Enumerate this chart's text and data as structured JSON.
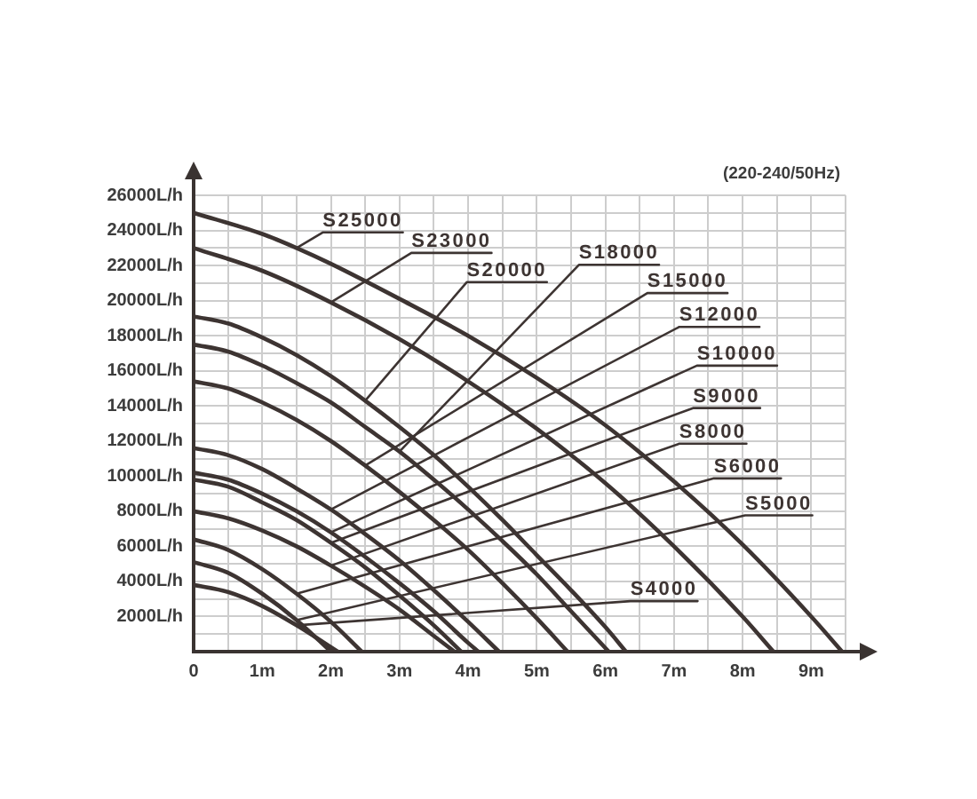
{
  "chart_data": {
    "type": "line",
    "annotations": [
      "(220-240/50Hz)"
    ],
    "xlim": [
      0,
      9.5
    ],
    "xticks": [
      0,
      {
        "value": 0.5,
        "label": null
      },
      {
        "value": 1,
        "label": "1m"
      },
      {
        "value": 1.5,
        "label": null
      },
      {
        "value": 2,
        "label": "2m"
      },
      {
        "value": 2.5,
        "label": null
      },
      {
        "value": 3,
        "label": "3m"
      },
      {
        "value": 3.5,
        "label": null
      },
      {
        "value": 4,
        "label": "4m"
      },
      {
        "value": 4.5,
        "label": null
      },
      {
        "value": 5,
        "label": "5m"
      },
      {
        "value": 5.5,
        "label": null
      },
      {
        "value": 6,
        "label": "6m"
      },
      {
        "value": 6.5,
        "label": null
      },
      {
        "value": 7,
        "label": "7m"
      },
      {
        "value": 7.5,
        "label": null
      },
      {
        "value": 8,
        "label": "8m"
      },
      {
        "value": 8.5,
        "label": null
      },
      {
        "value": 9,
        "label": "9m"
      },
      {
        "value": 9.5,
        "label": null
      }
    ],
    "ylim": [
      0,
      26000
    ],
    "yticks": [
      {
        "value": 0,
        "label": null
      },
      {
        "value": 1000,
        "label": null
      },
      {
        "value": 2000,
        "label": "2000L/h"
      },
      {
        "value": 3000,
        "label": null
      },
      {
        "value": 4000,
        "label": "4000L/h"
      },
      {
        "value": 5000,
        "label": null
      },
      {
        "value": 6000,
        "label": "6000L/h"
      },
      {
        "value": 7000,
        "label": null
      },
      {
        "value": 8000,
        "label": "8000L/h"
      },
      {
        "value": 9000,
        "label": null
      },
      {
        "value": 10000,
        "label": "10000L/h"
      },
      {
        "value": 11000,
        "label": null
      },
      {
        "value": 12000,
        "label": "12000L/h"
      },
      {
        "value": 13000,
        "label": null
      },
      {
        "value": 14000,
        "label": "14000L/h"
      },
      {
        "value": 15000,
        "label": null
      },
      {
        "value": 16000,
        "label": "16000L/h"
      },
      {
        "value": 17000,
        "label": null
      },
      {
        "value": 18000,
        "label": "18000L/h"
      },
      {
        "value": 19000,
        "label": null
      },
      {
        "value": 20000,
        "label": "20000L/h"
      },
      {
        "value": 21000,
        "label": null
      },
      {
        "value": 22000,
        "label": "22000L/h"
      },
      {
        "value": 23000,
        "label": null
      },
      {
        "value": 24000,
        "label": "24000L/h"
      },
      {
        "value": 25000,
        "label": null
      },
      {
        "value": 26000,
        "label": "26000L/h"
      }
    ],
    "grid": true,
    "legend": false,
    "marker": "none",
    "line_style": "solid",
    "series": [
      {
        "name": "S25000",
        "color": "#3d3432",
        "x": [
          0,
          1,
          1.5,
          2,
          3,
          4,
          5,
          6,
          7,
          8,
          9,
          9.45
        ],
        "values": [
          25000,
          23800,
          23000,
          22100,
          20100,
          18000,
          15600,
          12900,
          9700,
          6100,
          2000,
          0
        ]
      },
      {
        "name": "S23000",
        "color": "#3d3432",
        "x": [
          0,
          1,
          2,
          3,
          4,
          5,
          6,
          7,
          8,
          8.45
        ],
        "values": [
          23000,
          21700,
          19900,
          17800,
          15400,
          12700,
          9600,
          6000,
          2000,
          0
        ]
      },
      {
        "name": "S20000",
        "color": "#3d3432",
        "x": [
          0,
          0.5,
          1,
          1.5,
          2,
          2.5,
          3,
          3.5,
          4,
          4.5,
          5,
          5.5,
          6,
          6.3
        ],
        "values": [
          19100,
          18700,
          17900,
          16900,
          15700,
          14300,
          12800,
          11200,
          9400,
          7500,
          5500,
          3500,
          1400,
          0
        ]
      },
      {
        "name": "S18000",
        "color": "#3d3432",
        "x": [
          0,
          0.5,
          1,
          1.5,
          2,
          2.5,
          3,
          3.5,
          4,
          4.5,
          5,
          5.5,
          6.05
        ],
        "values": [
          17500,
          17100,
          16300,
          15300,
          14200,
          12800,
          11400,
          9800,
          8100,
          6300,
          4400,
          2300,
          0
        ]
      },
      {
        "name": "S15000",
        "color": "#3d3432",
        "x": [
          0,
          0.5,
          1,
          1.5,
          2,
          2.5,
          3,
          3.5,
          4,
          4.5,
          5,
          5.45
        ],
        "values": [
          15400,
          15000,
          14200,
          13200,
          12000,
          10600,
          9100,
          7500,
          5800,
          3900,
          1900,
          0
        ]
      },
      {
        "name": "S12000",
        "color": "#3d3432",
        "x": [
          0,
          0.5,
          1,
          1.5,
          2,
          2.5,
          3,
          3.5,
          4,
          4.45
        ],
        "values": [
          11600,
          11200,
          10400,
          9300,
          8100,
          6700,
          5200,
          3500,
          1700,
          0
        ]
      },
      {
        "name": "S10000",
        "color": "#3d3432",
        "x": [
          0,
          0.5,
          1,
          1.5,
          2,
          2.5,
          3,
          3.5,
          4,
          4.15
        ],
        "values": [
          10200,
          9800,
          9000,
          8000,
          6800,
          5400,
          3900,
          2300,
          500,
          0
        ]
      },
      {
        "name": "S9000",
        "color": "#3d3432",
        "x": [
          0,
          0.5,
          1,
          1.5,
          2,
          2.5,
          3,
          3.5,
          3.9
        ],
        "values": [
          9800,
          9400,
          8500,
          7500,
          6200,
          4800,
          3200,
          1500,
          0
        ]
      },
      {
        "name": "S8000",
        "color": "#3d3432",
        "x": [
          0,
          0.5,
          1,
          1.5,
          2,
          2.5,
          3,
          3.5,
          3.8
        ],
        "values": [
          8000,
          7600,
          6900,
          6000,
          4900,
          3700,
          2400,
          900,
          0
        ]
      },
      {
        "name": "S6000",
        "color": "#3d3432",
        "x": [
          0,
          0.5,
          1,
          1.5,
          2,
          2.45
        ],
        "values": [
          6400,
          5800,
          4700,
          3300,
          1700,
          0
        ]
      },
      {
        "name": "S5000",
        "color": "#3d3432",
        "x": [
          0,
          0.5,
          1,
          1.5,
          2
        ],
        "values": [
          5100,
          4500,
          3300,
          1800,
          0
        ]
      },
      {
        "name": "S4000",
        "color": "#3d3432",
        "x": [
          0,
          0.5,
          1,
          1.5,
          2.1
        ],
        "values": [
          3800,
          3400,
          2600,
          1500,
          0
        ]
      }
    ]
  }
}
